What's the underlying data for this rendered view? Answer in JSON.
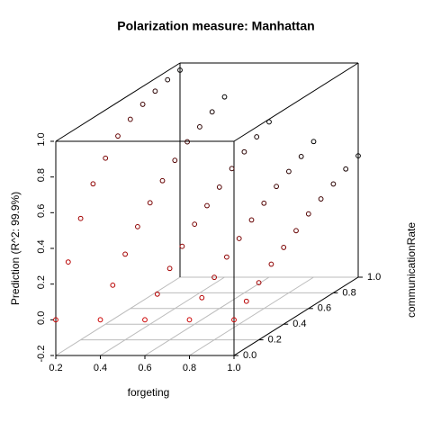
{
  "chart_data": {
    "type": "scatter3d",
    "title": "Polarization measure: Manhattan",
    "xlabel": "forgeting",
    "ylabel": "communicationRate",
    "zlabel": "Prediction (R^2: 99.9%)",
    "xlim": [
      0.2,
      1
    ],
    "ylim": [
      0,
      1
    ],
    "zlim": [
      -0.2,
      1
    ],
    "xticks": [
      0.2,
      0.4,
      0.6,
      0.8,
      {
        "value": 1,
        "label": "1.0"
      }
    ],
    "yticks": [
      {
        "value": 0,
        "label": "0.0"
      },
      0.2,
      0.4,
      0.6,
      0.8,
      {
        "value": 1,
        "label": "1.0"
      }
    ],
    "zticks": [
      -0.2,
      {
        "value": 0,
        "label": "0.0"
      },
      0.2,
      0.4,
      0.6,
      0.8,
      {
        "value": 1,
        "label": "1.0"
      }
    ],
    "grid": true,
    "color_front": "#cc0000",
    "color_back": "#000000",
    "x": [
      0.2,
      0.2,
      0.2,
      0.2,
      0.2,
      0.2,
      0.2,
      0.2,
      0.2,
      0.2,
      0.2,
      0.4,
      0.4,
      0.4,
      0.4,
      0.4,
      0.4,
      0.4,
      0.4,
      0.4,
      0.4,
      0.4,
      0.6,
      0.6,
      0.6,
      0.6,
      0.6,
      0.6,
      0.6,
      0.6,
      0.6,
      0.6,
      0.6,
      0.8,
      0.8,
      0.8,
      0.8,
      0.8,
      0.8,
      0.8,
      0.8,
      0.8,
      0.8,
      0.8,
      1,
      1,
      1,
      1,
      1,
      1,
      1,
      1,
      1,
      1,
      1
    ],
    "y": [
      0,
      0.1,
      0.2,
      0.3,
      0.4,
      0.5,
      0.6,
      0.7,
      0.8,
      0.9,
      1,
      0,
      0.1,
      0.2,
      0.3,
      0.4,
      0.5,
      0.6,
      0.7,
      0.8,
      0.9,
      1,
      0,
      0.1,
      0.2,
      0.3,
      0.4,
      0.5,
      0.6,
      0.7,
      0.8,
      0.9,
      1,
      0,
      0.1,
      0.2,
      0.3,
      0.4,
      0.5,
      0.6,
      0.7,
      0.8,
      0.9,
      1,
      0,
      0.1,
      0.2,
      0.3,
      0.4,
      0.5,
      0.6,
      0.7,
      0.8,
      0.9,
      1
    ],
    "z": [
      0,
      0.28,
      0.48,
      0.63,
      0.73,
      0.81,
      0.86,
      0.9,
      0.93,
      0.95,
      0.96,
      0,
      0.15,
      0.28,
      0.39,
      0.48,
      0.56,
      0.63,
      0.69,
      0.73,
      0.77,
      0.81,
      0,
      0.1,
      0.2,
      0.28,
      0.36,
      0.42,
      0.48,
      0.54,
      0.59,
      0.63,
      0.67,
      0,
      0.08,
      0.15,
      0.22,
      0.28,
      0.34,
      0.39,
      0.44,
      0.48,
      0.52,
      0.56,
      0,
      0.06,
      0.12,
      0.18,
      0.23,
      0.28,
      0.33,
      0.37,
      0.41,
      0.45,
      0.48
    ]
  }
}
